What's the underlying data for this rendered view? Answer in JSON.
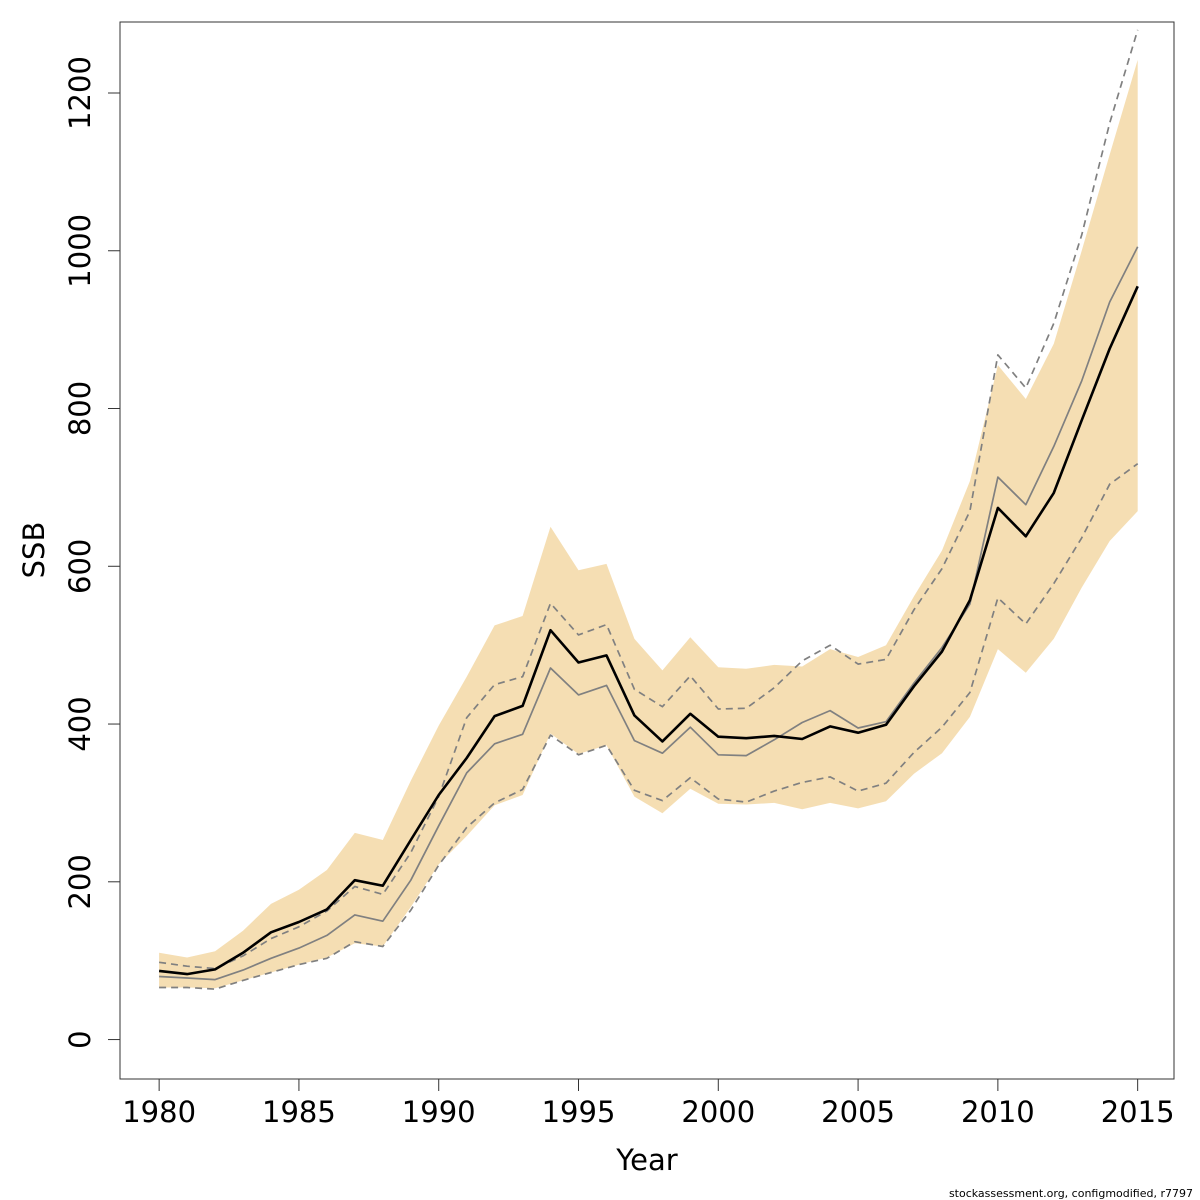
{
  "chart_data": {
    "type": "line",
    "title": "",
    "xlabel": "Year",
    "ylabel": "SSB",
    "xlim": [
      1978.6,
      2016.3
    ],
    "ylim": [
      -50,
      1290
    ],
    "x_ticks": [
      1980,
      1985,
      1990,
      1995,
      2000,
      2005,
      2010,
      2015
    ],
    "x_tick_labels": [
      "1980",
      "1985",
      "1990",
      "1995",
      "2000",
      "2005",
      "2010",
      "2015"
    ],
    "y_ticks": [
      0,
      200,
      400,
      600,
      800,
      1000,
      1200
    ],
    "y_tick_labels": [
      "0",
      "200",
      "400",
      "600",
      "800",
      "1000",
      "1200"
    ],
    "grid": false,
    "x": [
      1980,
      1981,
      1982,
      1983,
      1984,
      1985,
      1986,
      1987,
      1988,
      1989,
      1990,
      1991,
      1992,
      1993,
      1994,
      1995,
      1996,
      1997,
      1998,
      1999,
      2000,
      2001,
      2002,
      2003,
      2004,
      2005,
      2006,
      2007,
      2008,
      2009,
      2010,
      2011,
      2012,
      2013,
      2014,
      2015
    ],
    "band": {
      "color": "#f5deb3",
      "upper": [
        110,
        104,
        112,
        138,
        172,
        190,
        215,
        262,
        253,
        328,
        398,
        460,
        525,
        537,
        650,
        595,
        603,
        508,
        468,
        510,
        472,
        470,
        475,
        473,
        495,
        485,
        500,
        562,
        620,
        708,
        855,
        812,
        882,
        1000,
        1122,
        1242
      ],
      "lower": [
        66,
        66,
        65,
        75,
        85,
        95,
        104,
        122,
        118,
        168,
        222,
        258,
        297,
        310,
        388,
        362,
        373,
        308,
        287,
        318,
        299,
        298,
        300,
        292,
        300,
        293,
        302,
        337,
        363,
        409,
        495,
        465,
        508,
        573,
        632,
        670
      ]
    },
    "series": [
      {
        "color": "#000000",
        "values": [
          87,
          83,
          89,
          110,
          136,
          149,
          165,
          202,
          195,
          253,
          310,
          357,
          410,
          423,
          519,
          478,
          487,
          411,
          378,
          413,
          384,
          382,
          385,
          381,
          397,
          389,
          399,
          448,
          492,
          557,
          674,
          638,
          693,
          785,
          876,
          955
        ]
      },
      {
        "color": "#808080",
        "values": [
          80,
          78,
          76,
          88,
          103,
          116,
          132,
          158,
          150,
          202,
          271,
          338,
          375,
          387,
          471,
          437,
          449,
          379,
          363,
          396,
          361,
          360,
          380,
          402,
          417,
          395,
          403,
          452,
          497,
          552,
          713,
          678,
          752,
          835,
          935,
          1005
        ]
      },
      {
        "color": "#808080",
        "dashed": true,
        "values": [
          98,
          93,
          90,
          106,
          128,
          143,
          163,
          194,
          184,
          237,
          308,
          408,
          450,
          460,
          553,
          513,
          526,
          444,
          422,
          461,
          419,
          420,
          446,
          480,
          500,
          476,
          482,
          545,
          597,
          670,
          868,
          826,
          908,
          1020,
          1162,
          1280
        ]
      },
      {
        "color": "#808080",
        "dashed": true,
        "values": [
          66,
          66,
          64,
          75,
          85,
          95,
          103,
          124,
          118,
          164,
          221,
          269,
          300,
          317,
          386,
          361,
          373,
          316,
          303,
          332,
          305,
          301,
          315,
          326,
          333,
          315,
          325,
          364,
          396,
          440,
          560,
          527,
          578,
          636,
          704,
          730
        ]
      }
    ]
  },
  "footer_text": "stockassessment.org, configmodified, r7797"
}
